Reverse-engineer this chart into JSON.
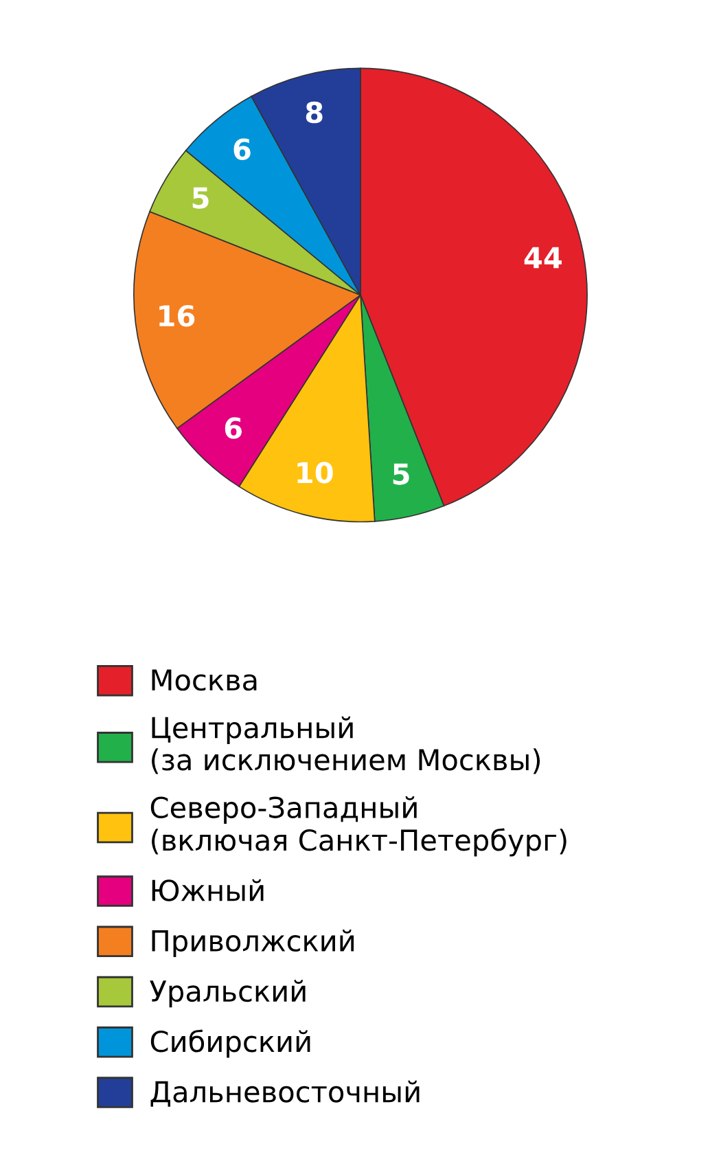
{
  "chart_data": {
    "type": "pie",
    "categories": [
      "Москва",
      "Центральный\n(за исключением Москвы)",
      "Северо-Западный\n(включая Санкт-Петербург)",
      "Южный",
      "Приволжский",
      "Уральский",
      "Сибирский",
      "Дальневосточный"
    ],
    "values": [
      44,
      5,
      10,
      6,
      16,
      5,
      6,
      8
    ],
    "colors": [
      "#e4202a",
      "#22b04b",
      "#ffc20e",
      "#e4007f",
      "#f47f20",
      "#a6c83a",
      "#0095da",
      "#233e99"
    ],
    "data_labels": true,
    "legend": "bottom"
  }
}
